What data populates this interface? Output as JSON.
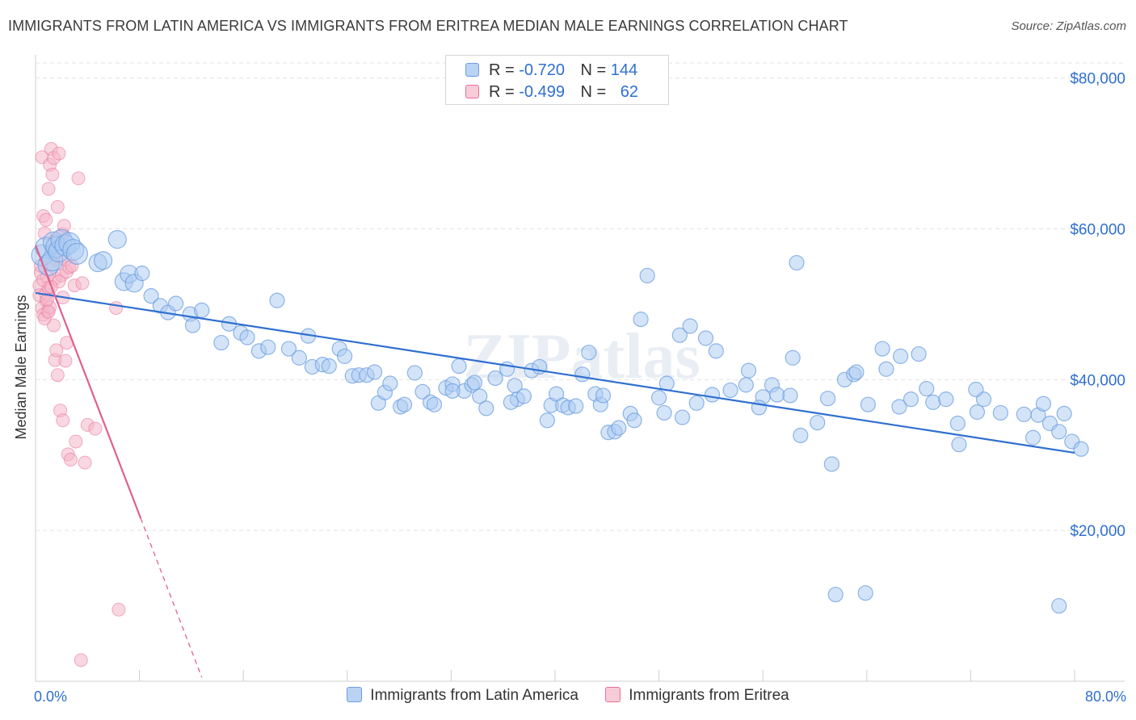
{
  "header": {
    "title": "IMMIGRANTS FROM LATIN AMERICA VS IMMIGRANTS FROM ERITREA MEDIAN MALE EARNINGS CORRELATION CHART",
    "source": "Source: ZipAtlas.com"
  },
  "legend_top": {
    "rows": [
      {
        "r_label": "R =",
        "r_value": "-0.720",
        "n_label": "N =",
        "n_value": "144",
        "color": "#9fc3ef"
      },
      {
        "r_label": "R =",
        "r_value": "-0.499",
        "n_label": "N =",
        "n_value": "62",
        "color": "#f4b6c8"
      }
    ]
  },
  "legend_bottom": {
    "items": [
      {
        "label": "Immigrants from Latin America",
        "color": "#9fc3ef"
      },
      {
        "label": "Immigrants from Eritrea",
        "color": "#f4b6c8"
      }
    ]
  },
  "watermark": "ZIPatlas",
  "chart_data": {
    "type": "scatter",
    "title": "IMMIGRANTS FROM LATIN AMERICA VS IMMIGRANTS FROM ERITREA MEDIAN MALE EARNINGS CORRELATION CHART",
    "xlabel": "",
    "ylabel": "Median Male Earnings",
    "xlim": [
      0,
      80
    ],
    "ylim": [
      0,
      82000
    ],
    "x_tick_labels": [
      "0.0%",
      "80.0%"
    ],
    "y_ticks": [
      20000,
      40000,
      60000,
      80000
    ],
    "y_tick_labels": [
      "$20,000",
      "$40,000",
      "$60,000",
      "$80,000"
    ],
    "grid": true,
    "legend_position": "top-center",
    "series": [
      {
        "name": "Immigrants from Latin America",
        "color": "#6b9ee0",
        "fill": "#a9c9f1",
        "R": -0.72,
        "N": 144,
        "trend": {
          "x0": 0,
          "y0": 51500,
          "x1": 80,
          "y1": 30300,
          "dashed_to": null
        },
        "points": [
          [
            0.5,
            56500
          ],
          [
            0.8,
            57500
          ],
          [
            1.0,
            55200
          ],
          [
            1.3,
            55800
          ],
          [
            1.4,
            58200
          ],
          [
            1.6,
            57600
          ],
          [
            1.8,
            57000
          ],
          [
            2.0,
            58500
          ],
          [
            2.3,
            57800
          ],
          [
            2.6,
            58100
          ],
          [
            2.9,
            57200
          ],
          [
            3.2,
            56700
          ],
          [
            4.8,
            55500
          ],
          [
            5.2,
            55800
          ],
          [
            6.3,
            58600
          ],
          [
            6.8,
            53000
          ],
          [
            7.2,
            54000
          ],
          [
            7.6,
            52800
          ],
          [
            8.2,
            54100
          ],
          [
            8.9,
            51100
          ],
          [
            9.6,
            49800
          ],
          [
            10.2,
            48900
          ],
          [
            10.8,
            50100
          ],
          [
            11.9,
            48700
          ],
          [
            12.1,
            47200
          ],
          [
            12.8,
            49200
          ],
          [
            14.3,
            44900
          ],
          [
            14.9,
            47400
          ],
          [
            15.8,
            46200
          ],
          [
            16.3,
            45600
          ],
          [
            17.2,
            43800
          ],
          [
            17.9,
            44300
          ],
          [
            18.6,
            50500
          ],
          [
            19.5,
            44100
          ],
          [
            20.3,
            42900
          ],
          [
            21.0,
            45800
          ],
          [
            21.3,
            41700
          ],
          [
            22.1,
            42000
          ],
          [
            22.6,
            41800
          ],
          [
            23.4,
            44100
          ],
          [
            23.8,
            43100
          ],
          [
            24.4,
            40500
          ],
          [
            24.9,
            40600
          ],
          [
            25.5,
            40600
          ],
          [
            26.1,
            41000
          ],
          [
            26.4,
            36900
          ],
          [
            26.9,
            38300
          ],
          [
            27.3,
            39500
          ],
          [
            28.1,
            36400
          ],
          [
            28.4,
            36700
          ],
          [
            29.2,
            40900
          ],
          [
            29.8,
            38400
          ],
          [
            30.4,
            37000
          ],
          [
            30.7,
            36700
          ],
          [
            31.6,
            38900
          ],
          [
            32.1,
            39400
          ],
          [
            32.6,
            41800
          ],
          [
            33.0,
            38500
          ],
          [
            33.6,
            39300
          ],
          [
            33.8,
            39600
          ],
          [
            34.2,
            37800
          ],
          [
            34.7,
            36200
          ],
          [
            35.4,
            40200
          ],
          [
            36.3,
            41400
          ],
          [
            36.9,
            39200
          ],
          [
            37.1,
            37400
          ],
          [
            37.6,
            37800
          ],
          [
            38.2,
            41200
          ],
          [
            38.8,
            41700
          ],
          [
            39.4,
            34600
          ],
          [
            39.7,
            36600
          ],
          [
            40.1,
            38100
          ],
          [
            40.6,
            36600
          ],
          [
            41.0,
            36300
          ],
          [
            41.6,
            36500
          ],
          [
            42.1,
            40700
          ],
          [
            42.6,
            43600
          ],
          [
            43.1,
            38100
          ],
          [
            43.5,
            36700
          ],
          [
            44.1,
            33000
          ],
          [
            44.6,
            33100
          ],
          [
            44.9,
            33600
          ],
          [
            45.8,
            35500
          ],
          [
            46.1,
            34600
          ],
          [
            46.6,
            48000
          ],
          [
            47.1,
            53800
          ],
          [
            48.0,
            37600
          ],
          [
            48.4,
            35600
          ],
          [
            48.6,
            39500
          ],
          [
            49.6,
            45900
          ],
          [
            49.8,
            35000
          ],
          [
            50.4,
            47100
          ],
          [
            50.9,
            36900
          ],
          [
            51.6,
            45500
          ],
          [
            52.1,
            38000
          ],
          [
            52.4,
            43800
          ],
          [
            53.5,
            38600
          ],
          [
            54.7,
            39300
          ],
          [
            54.9,
            41200
          ],
          [
            56.0,
            37700
          ],
          [
            56.7,
            39300
          ],
          [
            57.1,
            38000
          ],
          [
            58.1,
            37900
          ],
          [
            58.3,
            42900
          ],
          [
            58.6,
            55500
          ],
          [
            58.9,
            32600
          ],
          [
            60.2,
            34300
          ],
          [
            61.0,
            37500
          ],
          [
            61.3,
            28800
          ],
          [
            62.3,
            40000
          ],
          [
            63.0,
            40700
          ],
          [
            63.2,
            41000
          ],
          [
            64.1,
            36700
          ],
          [
            65.2,
            44100
          ],
          [
            65.5,
            41400
          ],
          [
            66.6,
            43100
          ],
          [
            67.4,
            37400
          ],
          [
            68.0,
            43400
          ],
          [
            68.6,
            38800
          ],
          [
            69.1,
            37000
          ],
          [
            70.1,
            37400
          ],
          [
            71.0,
            34200
          ],
          [
            71.1,
            31400
          ],
          [
            72.5,
            35700
          ],
          [
            73.0,
            37400
          ],
          [
            74.3,
            35600
          ],
          [
            76.1,
            35400
          ],
          [
            76.8,
            32300
          ],
          [
            77.2,
            35300
          ],
          [
            77.6,
            36800
          ],
          [
            78.1,
            34200
          ],
          [
            79.8,
            31800
          ],
          [
            78.8,
            33100
          ],
          [
            80.5,
            30800
          ],
          [
            79.2,
            35500
          ],
          [
            61.6,
            11500
          ],
          [
            63.9,
            11700
          ],
          [
            78.8,
            10000
          ],
          [
            72.4,
            38700
          ],
          [
            66.5,
            36400
          ],
          [
            55.7,
            36300
          ],
          [
            43.7,
            37900
          ],
          [
            36.6,
            37000
          ],
          [
            32.1,
            38500
          ]
        ]
      },
      {
        "name": "Immigrants from Eritrea",
        "color": "#e96e9a",
        "fill": "#f4b6c8",
        "R": -0.499,
        "N": 62,
        "trend": {
          "x0": 0,
          "y0": 57800,
          "x1": 8.1,
          "y1": 21600,
          "dashed_to": [
            12.8,
            500
          ]
        },
        "points": [
          [
            0.3,
            52500
          ],
          [
            0.4,
            54200
          ],
          [
            0.5,
            69500
          ],
          [
            0.6,
            61700
          ],
          [
            0.7,
            59400
          ],
          [
            0.8,
            50500
          ],
          [
            0.9,
            49000
          ],
          [
            1.0,
            65300
          ],
          [
            1.1,
            68500
          ],
          [
            1.2,
            70600
          ],
          [
            1.3,
            67200
          ],
          [
            1.4,
            69400
          ],
          [
            1.5,
            53400
          ],
          [
            1.6,
            55900
          ],
          [
            1.7,
            62900
          ],
          [
            1.8,
            70000
          ],
          [
            2.0,
            53800
          ],
          [
            2.1,
            59300
          ],
          [
            2.2,
            60400
          ],
          [
            2.3,
            55900
          ],
          [
            2.4,
            54300
          ],
          [
            2.6,
            54900
          ],
          [
            2.8,
            55100
          ],
          [
            3.0,
            52500
          ],
          [
            3.3,
            66700
          ],
          [
            3.6,
            52800
          ],
          [
            0.3,
            51200
          ],
          [
            0.4,
            55100
          ],
          [
            0.5,
            49500
          ],
          [
            0.6,
            48600
          ],
          [
            0.8,
            51400
          ],
          [
            0.9,
            53600
          ],
          [
            1.0,
            52200
          ],
          [
            1.1,
            49600
          ],
          [
            1.3,
            55300
          ],
          [
            1.4,
            47200
          ],
          [
            1.5,
            42600
          ],
          [
            1.6,
            43900
          ],
          [
            1.7,
            40600
          ],
          [
            1.9,
            35900
          ],
          [
            2.1,
            34600
          ],
          [
            2.3,
            42500
          ],
          [
            2.4,
            44900
          ],
          [
            2.5,
            30100
          ],
          [
            2.7,
            29400
          ],
          [
            3.1,
            31800
          ],
          [
            3.8,
            29000
          ],
          [
            4.0,
            34000
          ],
          [
            4.6,
            33500
          ],
          [
            6.2,
            49500
          ],
          [
            1.2,
            57200
          ],
          [
            1.8,
            53000
          ],
          [
            0.7,
            48100
          ],
          [
            0.9,
            50600
          ],
          [
            1.0,
            49000
          ],
          [
            2.1,
            50900
          ],
          [
            1.5,
            58400
          ],
          [
            0.6,
            53200
          ],
          [
            0.8,
            61200
          ],
          [
            6.4,
            9500
          ],
          [
            3.5,
            2800
          ],
          [
            1.2,
            52300
          ]
        ]
      }
    ]
  }
}
